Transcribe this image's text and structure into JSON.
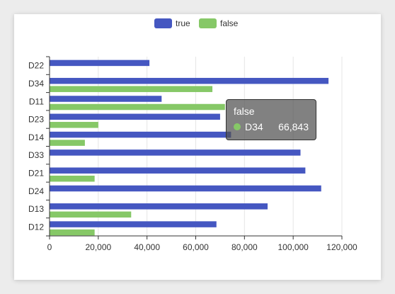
{
  "colors": {
    "true": "#4557c1",
    "false": "#86c867",
    "axis": "#333333",
    "grid": "#e6e6e6"
  },
  "legend": [
    {
      "name": "true",
      "color": "#4557c1"
    },
    {
      "name": "false",
      "color": "#86c867"
    }
  ],
  "tooltip": {
    "series": "false",
    "category": "D34",
    "value": "66,843",
    "color": "#86c867"
  },
  "chart_data": {
    "type": "bar",
    "orientation": "horizontal",
    "categories": [
      "D12",
      "D13",
      "D24",
      "D21",
      "D33",
      "D14",
      "D23",
      "D11",
      "D34",
      "D22"
    ],
    "series": [
      {
        "name": "true",
        "values": [
          68500,
          89500,
          111500,
          105000,
          103000,
          74500,
          70000,
          46000,
          114500,
          41000
        ]
      },
      {
        "name": "false",
        "values": [
          18500,
          33500,
          0,
          18500,
          0,
          14500,
          20000,
          72000,
          66843,
          0
        ]
      }
    ],
    "xlim": [
      0,
      120000
    ],
    "xticks": [
      "0",
      "20,000",
      "40,000",
      "60,000",
      "80,000",
      "100,000",
      "120,000"
    ],
    "grid": true,
    "legend_position": "top-center"
  }
}
